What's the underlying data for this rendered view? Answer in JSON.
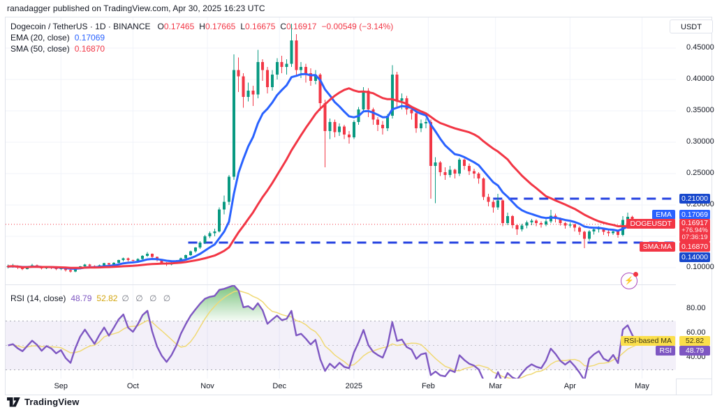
{
  "header": {
    "publish_line": "ranadagger published on TradingView.com, Apr 30, 2025 16:23 UTC"
  },
  "toolbar": {
    "currency_label": "USDT"
  },
  "legend": {
    "symbol_title": "Dogecoin / TetherUS · 1D · BINANCE",
    "o_label": "O",
    "o_value": "0.17465",
    "h_label": "H",
    "h_value": "0.17665",
    "l_label": "L",
    "l_value": "0.16675",
    "c_label": "C",
    "c_value": "0.16917",
    "change": "−0.00549 (−3.14%)",
    "ema_label": "EMA (20, close)",
    "ema_value": "0.17069",
    "sma_label": "SMA (50, close)",
    "sma_value": "0.16870"
  },
  "rsi_legend": {
    "label": "RSI (14, close)",
    "rsi_value": "48.79",
    "ma_value": "52.82",
    "empty_slots": "∅ ∅ ∅ ∅"
  },
  "badges": {
    "upper_level": "0.21000",
    "ema_tag": "EMA",
    "ema_value": "0.17069",
    "symbol_tag": "DOGEUSDT",
    "symbol_price": "0.16917",
    "symbol_change_pct": "+76.94%",
    "symbol_countdown": "07:36:19",
    "sma_tag": "SMA:MA",
    "sma_value": "0.16870",
    "lower_level": "0.14000",
    "rsi_ma_tag": "RSI-based MA",
    "rsi_ma_value": "52.82",
    "rsi_tag": "RSI",
    "rsi_value": "48.79"
  },
  "footer": {
    "brand": "TradingView"
  },
  "colors": {
    "up": "#089981",
    "down": "#f23645",
    "ema": "#2962ff",
    "sma": "#f23645",
    "level": "#2441e0",
    "level_badge": "#1848cc",
    "last_price": "#f23645",
    "rsi": "#7e57c2",
    "rsi_ma": "#f0d974",
    "rsi_band_fill": "rgba(126,87,194,0.09)",
    "overbought_fill": "#4caf50",
    "badge_blue": "#2962ff",
    "badge_red": "#f23645",
    "badge_yellow": "#fbdf4b",
    "badge_yellow_text": "#3a3416",
    "grid": "#f0f3fa",
    "border": "#e0e3eb",
    "text": "#131722",
    "muted": "#787b86"
  },
  "chart_data": {
    "type": "candlestick",
    "title": "Dogecoin / TetherUS 1D BINANCE",
    "start_date": "2024-08-10",
    "days_per_candle": 2,
    "price_axis_visible_range": [
      0.074,
      0.499
    ],
    "rsi_axis_visible_range": [
      23,
      100
    ],
    "grid": true,
    "legend_position": "top-left",
    "months": [
      {
        "label": "Sep",
        "t": 22
      },
      {
        "label": "Oct",
        "t": 52
      },
      {
        "label": "Nov",
        "t": 83
      },
      {
        "label": "Dec",
        "t": 113
      },
      {
        "label": "2025",
        "t": 144
      },
      {
        "label": "Feb",
        "t": 175
      },
      {
        "label": "Mar",
        "t": 203
      },
      {
        "label": "Apr",
        "t": 234
      },
      {
        "label": "May",
        "t": 264
      }
    ],
    "price_ticks": [
      {
        "label": "0.45000",
        "value": 0.45
      },
      {
        "label": "0.40000",
        "value": 0.4
      },
      {
        "label": "0.35000",
        "value": 0.35
      },
      {
        "label": "0.30000",
        "value": 0.3
      },
      {
        "label": "0.25000",
        "value": 0.25
      },
      {
        "label": "0.20000",
        "value": 0.2
      },
      {
        "label": "0.10000",
        "value": 0.1
      }
    ],
    "price_gridlines": [
      0.45,
      0.4,
      0.35,
      0.3,
      0.25,
      0.2,
      0.15,
      0.1
    ],
    "rsi_ticks": [
      {
        "label": "80.00",
        "value": 80
      },
      {
        "label": "60.00",
        "value": 60
      },
      {
        "label": "40.00",
        "value": 40
      }
    ],
    "rsi_band": {
      "upper": 70,
      "mid": 50,
      "lower": 30
    },
    "levels": [
      {
        "price": 0.21,
        "from_t": 202
      },
      {
        "price": 0.14,
        "from_t": 75
      }
    ],
    "last_price": 0.16917,
    "indicators_shown": {
      "ema_days": 20,
      "sma_days": 50,
      "rsi_days": 14
    },
    "candles": [
      [
        0.101,
        0.105,
        0.099,
        0.102
      ],
      [
        0.102,
        0.106,
        0.1,
        0.103
      ],
      [
        0.103,
        0.104,
        0.098,
        0.1
      ],
      [
        0.1,
        0.102,
        0.096,
        0.098
      ],
      [
        0.098,
        0.103,
        0.097,
        0.101
      ],
      [
        0.101,
        0.106,
        0.1,
        0.104
      ],
      [
        0.104,
        0.105,
        0.1,
        0.102
      ],
      [
        0.102,
        0.103,
        0.097,
        0.099
      ],
      [
        0.099,
        0.103,
        0.098,
        0.101
      ],
      [
        0.101,
        0.102,
        0.098,
        0.1
      ],
      [
        0.1,
        0.101,
        0.096,
        0.098
      ],
      [
        0.098,
        0.101,
        0.096,
        0.099
      ],
      [
        0.099,
        0.1,
        0.094,
        0.096
      ],
      [
        0.096,
        0.098,
        0.092,
        0.094
      ],
      [
        0.094,
        0.099,
        0.093,
        0.098
      ],
      [
        0.098,
        0.103,
        0.097,
        0.102
      ],
      [
        0.102,
        0.106,
        0.101,
        0.105
      ],
      [
        0.105,
        0.106,
        0.101,
        0.103
      ],
      [
        0.103,
        0.104,
        0.099,
        0.101
      ],
      [
        0.101,
        0.105,
        0.1,
        0.104
      ],
      [
        0.104,
        0.108,
        0.103,
        0.107
      ],
      [
        0.107,
        0.108,
        0.103,
        0.105
      ],
      [
        0.105,
        0.109,
        0.104,
        0.108
      ],
      [
        0.108,
        0.113,
        0.107,
        0.112
      ],
      [
        0.112,
        0.116,
        0.11,
        0.115
      ],
      [
        0.115,
        0.116,
        0.11,
        0.112
      ],
      [
        0.112,
        0.113,
        0.108,
        0.111
      ],
      [
        0.111,
        0.115,
        0.11,
        0.114
      ],
      [
        0.114,
        0.12,
        0.113,
        0.119
      ],
      [
        0.119,
        0.125,
        0.117,
        0.122
      ],
      [
        0.122,
        0.123,
        0.115,
        0.117
      ],
      [
        0.117,
        0.118,
        0.11,
        0.112
      ],
      [
        0.112,
        0.113,
        0.106,
        0.108
      ],
      [
        0.108,
        0.109,
        0.103,
        0.105
      ],
      [
        0.105,
        0.109,
        0.104,
        0.107
      ],
      [
        0.107,
        0.112,
        0.106,
        0.11
      ],
      [
        0.11,
        0.116,
        0.109,
        0.115
      ],
      [
        0.115,
        0.121,
        0.114,
        0.12
      ],
      [
        0.12,
        0.127,
        0.119,
        0.126
      ],
      [
        0.126,
        0.133,
        0.124,
        0.132
      ],
      [
        0.132,
        0.142,
        0.13,
        0.14
      ],
      [
        0.14,
        0.152,
        0.138,
        0.15
      ],
      [
        0.15,
        0.158,
        0.147,
        0.155
      ],
      [
        0.155,
        0.162,
        0.15,
        0.158
      ],
      [
        0.158,
        0.196,
        0.156,
        0.193
      ],
      [
        0.193,
        0.215,
        0.185,
        0.205
      ],
      [
        0.205,
        0.248,
        0.2,
        0.245
      ],
      [
        0.245,
        0.44,
        0.24,
        0.415
      ],
      [
        0.415,
        0.435,
        0.38,
        0.405
      ],
      [
        0.405,
        0.41,
        0.355,
        0.372
      ],
      [
        0.372,
        0.395,
        0.365,
        0.382
      ],
      [
        0.382,
        0.39,
        0.358,
        0.376
      ],
      [
        0.376,
        0.447,
        0.37,
        0.428
      ],
      [
        0.428,
        0.432,
        0.398,
        0.415
      ],
      [
        0.415,
        0.42,
        0.378,
        0.388
      ],
      [
        0.388,
        0.415,
        0.382,
        0.408
      ],
      [
        0.408,
        0.434,
        0.4,
        0.428
      ],
      [
        0.428,
        0.438,
        0.41,
        0.42
      ],
      [
        0.42,
        0.432,
        0.408,
        0.425
      ],
      [
        0.425,
        0.489,
        0.42,
        0.462
      ],
      [
        0.462,
        0.472,
        0.405,
        0.415
      ],
      [
        0.415,
        0.428,
        0.402,
        0.42
      ],
      [
        0.42,
        0.425,
        0.395,
        0.41
      ],
      [
        0.41,
        0.418,
        0.39,
        0.398
      ],
      [
        0.398,
        0.415,
        0.392,
        0.408
      ],
      [
        0.408,
        0.41,
        0.35,
        0.362
      ],
      [
        0.362,
        0.368,
        0.26,
        0.318
      ],
      [
        0.318,
        0.338,
        0.305,
        0.332
      ],
      [
        0.332,
        0.336,
        0.308,
        0.316
      ],
      [
        0.316,
        0.33,
        0.31,
        0.325
      ],
      [
        0.325,
        0.328,
        0.305,
        0.312
      ],
      [
        0.312,
        0.318,
        0.298,
        0.308
      ],
      [
        0.308,
        0.335,
        0.305,
        0.332
      ],
      [
        0.332,
        0.356,
        0.328,
        0.352
      ],
      [
        0.352,
        0.388,
        0.348,
        0.382
      ],
      [
        0.382,
        0.386,
        0.34,
        0.352
      ],
      [
        0.352,
        0.355,
        0.328,
        0.336
      ],
      [
        0.336,
        0.34,
        0.318,
        0.328
      ],
      [
        0.328,
        0.334,
        0.312,
        0.322
      ],
      [
        0.322,
        0.345,
        0.318,
        0.342
      ],
      [
        0.342,
        0.423,
        0.338,
        0.408
      ],
      [
        0.408,
        0.412,
        0.355,
        0.366
      ],
      [
        0.366,
        0.378,
        0.352,
        0.37
      ],
      [
        0.37,
        0.374,
        0.344,
        0.352
      ],
      [
        0.352,
        0.358,
        0.336,
        0.346
      ],
      [
        0.346,
        0.348,
        0.315,
        0.322
      ],
      [
        0.322,
        0.336,
        0.316,
        0.33
      ],
      [
        0.33,
        0.338,
        0.322,
        0.332
      ],
      [
        0.332,
        0.336,
        0.21,
        0.262
      ],
      [
        0.262,
        0.276,
        0.203,
        0.268
      ],
      [
        0.268,
        0.27,
        0.246,
        0.252
      ],
      [
        0.252,
        0.26,
        0.24,
        0.248
      ],
      [
        0.248,
        0.262,
        0.244,
        0.256
      ],
      [
        0.256,
        0.258,
        0.242,
        0.25
      ],
      [
        0.25,
        0.275,
        0.246,
        0.272
      ],
      [
        0.272,
        0.274,
        0.256,
        0.262
      ],
      [
        0.262,
        0.266,
        0.248,
        0.254
      ],
      [
        0.254,
        0.258,
        0.242,
        0.25
      ],
      [
        0.25,
        0.252,
        0.234,
        0.242
      ],
      [
        0.242,
        0.244,
        0.208,
        0.213
      ],
      [
        0.213,
        0.218,
        0.198,
        0.205
      ],
      [
        0.205,
        0.208,
        0.188,
        0.196
      ],
      [
        0.196,
        0.218,
        0.192,
        0.207
      ],
      [
        0.207,
        0.209,
        0.166,
        0.171
      ],
      [
        0.171,
        0.188,
        0.168,
        0.182
      ],
      [
        0.182,
        0.184,
        0.163,
        0.168
      ],
      [
        0.168,
        0.17,
        0.152,
        0.161
      ],
      [
        0.161,
        0.17,
        0.158,
        0.167
      ],
      [
        0.167,
        0.175,
        0.163,
        0.172
      ],
      [
        0.172,
        0.178,
        0.168,
        0.175
      ],
      [
        0.175,
        0.177,
        0.166,
        0.171
      ],
      [
        0.171,
        0.174,
        0.164,
        0.169
      ],
      [
        0.169,
        0.177,
        0.166,
        0.174
      ],
      [
        0.174,
        0.192,
        0.171,
        0.183
      ],
      [
        0.183,
        0.186,
        0.172,
        0.178
      ],
      [
        0.178,
        0.18,
        0.167,
        0.171
      ],
      [
        0.171,
        0.173,
        0.162,
        0.167
      ],
      [
        0.167,
        0.172,
        0.164,
        0.169
      ],
      [
        0.169,
        0.17,
        0.158,
        0.164
      ],
      [
        0.164,
        0.166,
        0.152,
        0.157
      ],
      [
        0.157,
        0.159,
        0.131,
        0.146
      ],
      [
        0.146,
        0.16,
        0.143,
        0.158
      ],
      [
        0.158,
        0.164,
        0.153,
        0.161
      ],
      [
        0.161,
        0.166,
        0.156,
        0.163
      ],
      [
        0.163,
        0.164,
        0.152,
        0.157
      ],
      [
        0.157,
        0.16,
        0.15,
        0.155
      ],
      [
        0.155,
        0.161,
        0.152,
        0.158
      ],
      [
        0.158,
        0.159,
        0.148,
        0.152
      ],
      [
        0.152,
        0.182,
        0.15,
        0.176
      ],
      [
        0.176,
        0.188,
        0.172,
        0.181
      ],
      [
        0.181,
        0.183,
        0.17,
        0.1746
      ],
      [
        0.17465,
        0.17665,
        0.16675,
        0.16917
      ]
    ]
  }
}
